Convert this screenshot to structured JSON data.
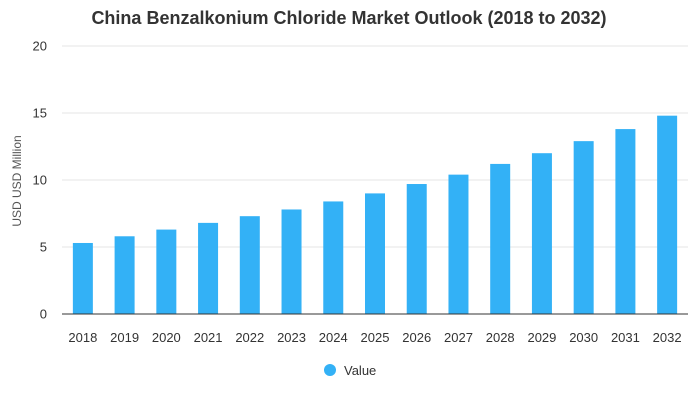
{
  "chart_data": {
    "type": "bar",
    "title": "China Benzalkonium Chloride Market Outlook (2018 to 2032)",
    "xlabel": "",
    "ylabel": "USD USD Million",
    "categories": [
      "2018",
      "2019",
      "2020",
      "2021",
      "2022",
      "2023",
      "2024",
      "2025",
      "2026",
      "2027",
      "2028",
      "2029",
      "2030",
      "2031",
      "2032"
    ],
    "series": [
      {
        "name": "Value",
        "values": [
          5.3,
          5.8,
          6.3,
          6.8,
          7.3,
          7.8,
          8.4,
          9.0,
          9.7,
          10.4,
          11.2,
          12.0,
          12.9,
          13.8,
          14.8
        ]
      }
    ],
    "ylim": [
      0,
      20
    ],
    "yticks": [
      0,
      5,
      10,
      15,
      20
    ],
    "grid": true,
    "legend_position": "bottom",
    "colors": {
      "bar": "#33b1f6",
      "grid": "#e6e6e6",
      "axis": "#333333"
    }
  }
}
